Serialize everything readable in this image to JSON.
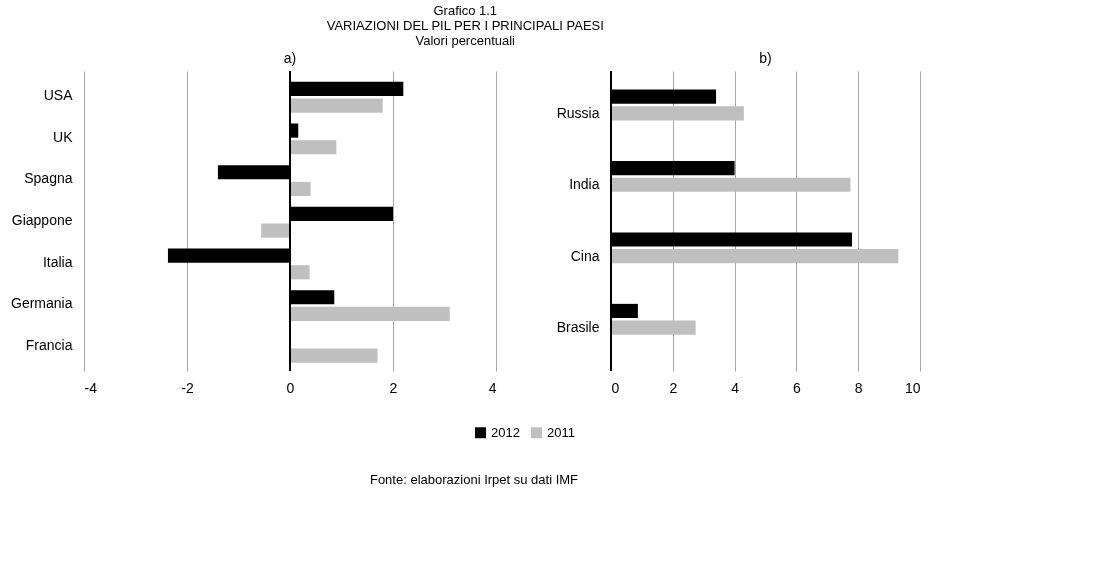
{
  "chart_data": [
    {
      "type": "bar",
      "orientation": "horizontal",
      "title": "a)",
      "categories": [
        "USA",
        "UK",
        "Spagna",
        "Giappone",
        "Italia",
        "Germania",
        "Francia"
      ],
      "series": [
        {
          "name": "2012",
          "color": "#000000",
          "values": [
            2.2,
            0.16,
            -1.4,
            2.0,
            -2.37,
            0.86,
            0.0
          ]
        },
        {
          "name": "2011",
          "color": "#bfbfbf",
          "values": [
            1.8,
            0.9,
            0.4,
            -0.56,
            0.38,
            3.1,
            1.7
          ]
        }
      ],
      "xlim": [
        -4,
        4
      ],
      "xticks": [
        -4,
        -2,
        0,
        2,
        4
      ],
      "grid": "x",
      "legend": "bottom",
      "annotations": [
        "Grafico 1.1",
        "VARIAZIONI DEL PIL PER I PRINCIPALI PAESI",
        "Valori percentuali",
        "Fonte: elaborazioni Irpet su dati IMF"
      ]
    },
    {
      "type": "bar",
      "orientation": "horizontal",
      "title": "b)",
      "categories": [
        "Russia",
        "India",
        "Cina",
        "Brasile"
      ],
      "series": [
        {
          "name": "2012",
          "color": "#000000",
          "values": [
            3.4,
            4.0,
            7.8,
            0.87
          ]
        },
        {
          "name": "2011",
          "color": "#bfbfbf",
          "values": [
            4.3,
            7.75,
            9.3,
            2.74
          ]
        }
      ],
      "xlim": [
        0,
        10
      ],
      "xticks": [
        0,
        2,
        4,
        6,
        8,
        10
      ],
      "grid": "x",
      "legend": "bottom"
    }
  ]
}
